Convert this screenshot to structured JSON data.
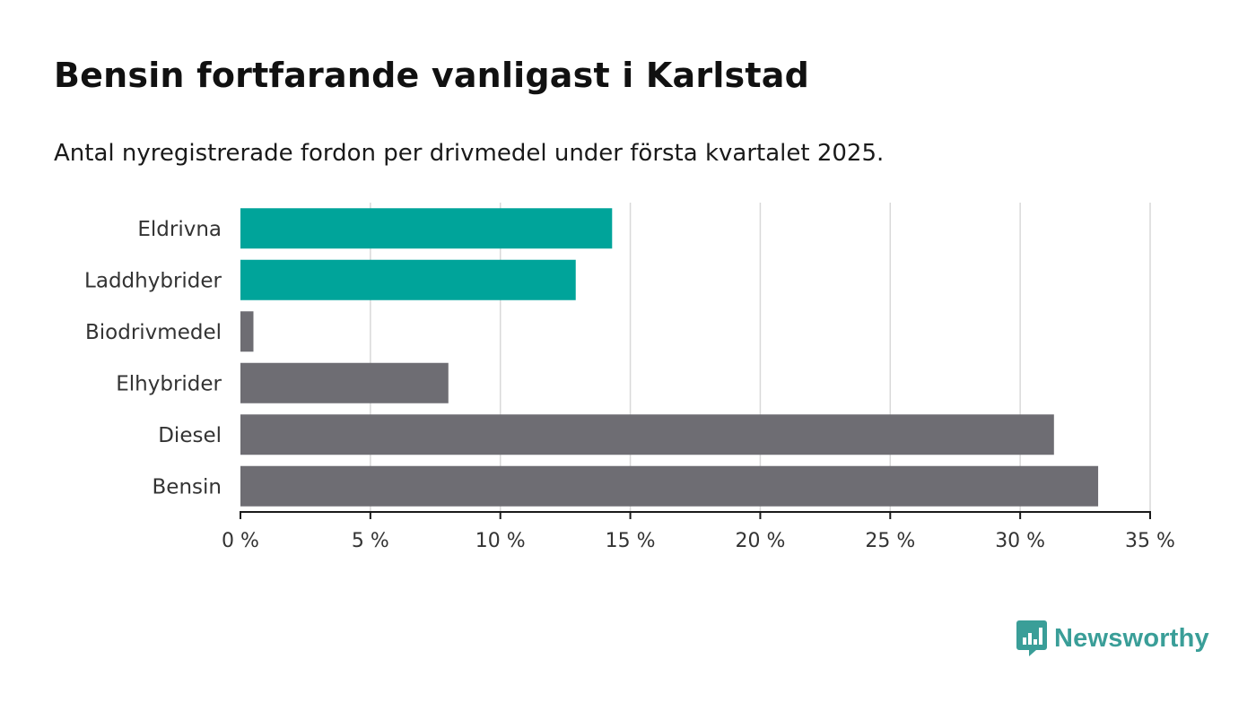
{
  "header": {
    "title": "Bensin fortfarande vanligast i Karlstad",
    "subtitle": "Antal nyregistrerade fordon per drivmedel under första kvartalet 2025."
  },
  "brand": {
    "name": "Newsworthy",
    "icon": "bar-chart-speech-bubble-icon",
    "color": "#3a9e98"
  },
  "colors": {
    "highlight": "#00a49a",
    "default": "#6e6d73",
    "grid": "#d9d9d9",
    "axis": "#1a1a1a"
  },
  "chart_data": {
    "type": "bar",
    "orientation": "horizontal",
    "categories": [
      "Eldrivna",
      "Laddhybrider",
      "Biodrivmedel",
      "Elhybrider",
      "Diesel",
      "Bensin"
    ],
    "values": [
      14.3,
      12.9,
      0.5,
      8.0,
      31.3,
      33.0
    ],
    "highlighted": [
      true,
      true,
      false,
      false,
      false,
      false
    ],
    "xlim": [
      0,
      35
    ],
    "xticks": [
      0,
      5,
      10,
      15,
      20,
      25,
      30,
      35
    ],
    "tick_suffix": " %",
    "grid": true,
    "legend": "none"
  }
}
